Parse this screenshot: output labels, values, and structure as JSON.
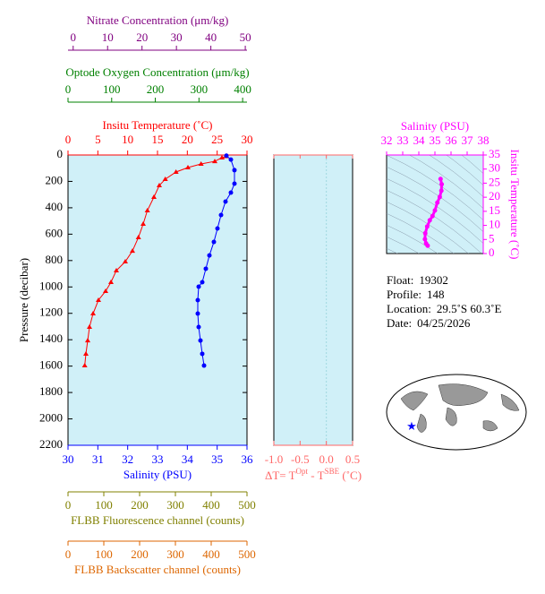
{
  "chart_data": [
    {
      "type": "profile",
      "ylabel": "Pressure (decibar)",
      "ylim": [
        0,
        2200
      ],
      "yticks": [
        0,
        200,
        400,
        600,
        800,
        1000,
        1200,
        1400,
        1600,
        1800,
        2000,
        2200
      ],
      "background": "#d0f0f8",
      "series": [
        {
          "name": "Insitu Temperature (˚C)",
          "color": "#ff0000",
          "axis": "top",
          "marker": "triangle",
          "xlim": [
            0,
            30
          ],
          "xticks": [
            0,
            5,
            10,
            15,
            20,
            25,
            30
          ],
          "pressure": [
            10,
            20,
            48,
            68,
            95,
            129,
            183,
            231,
            319,
            421,
            523,
            625,
            727,
            808,
            876,
            964,
            1032,
            1100,
            1202,
            1304,
            1406,
            1507,
            1596
          ],
          "values": [
            26.5,
            25.8,
            24.6,
            22.3,
            20.1,
            18.1,
            16.3,
            15.3,
            14.4,
            13.3,
            12.6,
            11.8,
            10.8,
            9.6,
            8.1,
            7.2,
            6.3,
            5.1,
            4.2,
            3.6,
            3.3,
            3.0,
            2.8
          ]
        },
        {
          "name": "Salinity (PSU)",
          "color": "#0000ff",
          "axis": "bottom",
          "marker": "circle",
          "xlim": [
            30,
            36
          ],
          "xticks": [
            30,
            31,
            32,
            33,
            34,
            35,
            36
          ],
          "pressure": [
            5,
            35,
            115,
            217,
            285,
            353,
            455,
            557,
            659,
            761,
            862,
            964,
            998,
            1100,
            1202,
            1304,
            1406,
            1507,
            1596
          ],
          "values": [
            35.31,
            35.46,
            35.58,
            35.58,
            35.46,
            35.28,
            35.13,
            35.01,
            34.89,
            34.74,
            34.62,
            34.5,
            34.38,
            34.35,
            34.35,
            34.38,
            34.44,
            34.5,
            34.56
          ]
        }
      ],
      "extra_axes": [
        {
          "title": "Nitrate Concentration (μm/kg)",
          "color": "#800080",
          "side": "top",
          "xlim": [
            -1.5,
            50.5
          ],
          "xticks": [
            0,
            10,
            20,
            30,
            40,
            50
          ]
        },
        {
          "title": "Optode Oxygen Concentration (μm/kg)",
          "color": "#008000",
          "side": "top",
          "xlim": [
            0,
            410
          ],
          "xticks": [
            0,
            100,
            200,
            300,
            400
          ]
        },
        {
          "title": "FLBB Fluorescence channel (counts)",
          "color": "#808000",
          "side": "bottom",
          "xlim": [
            0,
            500
          ],
          "xticks": [
            0,
            100,
            200,
            300,
            400,
            500
          ]
        },
        {
          "title": "FLBB Backscatter channel (counts)",
          "color": "#dd6600",
          "side": "bottom",
          "xlim": [
            0,
            500
          ],
          "xticks": [
            0,
            100,
            200,
            300,
            400,
            500
          ]
        }
      ]
    },
    {
      "type": "empty",
      "xlabel_parts": [
        "ΔT= T",
        "Opt",
        " - T",
        "SBE",
        " (˚C)"
      ],
      "color": "#ff6666",
      "background": "#d0f0f8",
      "xlim": [
        -1.0,
        0.5
      ],
      "xticks": [
        {
          "value": -1.0,
          "label": "-1.0"
        },
        {
          "value": -0.5,
          "label": "-0.5"
        },
        {
          "value": 0,
          "label": "0.0"
        },
        {
          "value": 0.5,
          "label": "0.5"
        }
      ],
      "ylim": [
        0,
        2200
      ]
    },
    {
      "type": "ts",
      "title": "Salinity (PSU)",
      "ylabel": "Insitu Temperature (˚C)",
      "color": "#ff00ff",
      "background": "#d0f0f8",
      "xlim": [
        32,
        38
      ],
      "xticks": [
        32,
        33,
        34,
        35,
        36,
        37,
        38
      ],
      "ylim": [
        0,
        35
      ],
      "yticks": [
        0,
        5,
        10,
        15,
        20,
        25,
        30,
        35
      ],
      "salinity": [
        34.55,
        34.45,
        34.38,
        34.4,
        34.52,
        34.68,
        34.85,
        35.0,
        35.15,
        35.3,
        35.4,
        35.42,
        35.35
      ],
      "temperature": [
        2.8,
        3.6,
        5.1,
        7.2,
        9.6,
        11.8,
        13.3,
        15.3,
        18.1,
        20.1,
        22.3,
        24.6,
        26.5
      ]
    }
  ],
  "float_info": [
    {
      "label": "Float:",
      "value": "19302"
    },
    {
      "label": "Profile:",
      "value": "148"
    },
    {
      "label": "Location:",
      "value": "29.5˚S  60.3˚E"
    },
    {
      "label": "Date:",
      "value": "04/25/2026"
    }
  ]
}
